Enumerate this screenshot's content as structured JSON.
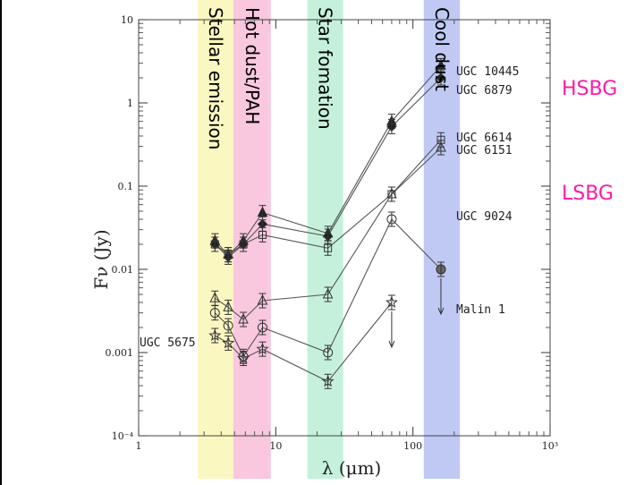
{
  "chart_data": {
    "type": "scatter",
    "xscale": "log",
    "yscale": "log",
    "xlim": [
      1,
      1000
    ],
    "ylim": [
      0.0001,
      10
    ],
    "xlabel": "λ (μm)",
    "ylabel": "Fν (Jy)",
    "x_ticks": [
      {
        "value": 1,
        "label": "1"
      },
      {
        "value": 10,
        "label": "10"
      },
      {
        "value": 100,
        "label": "100"
      },
      {
        "value": 1000,
        "label": "10³"
      }
    ],
    "y_ticks": [
      {
        "value": 10,
        "label": "10"
      },
      {
        "value": 1,
        "label": "1"
      },
      {
        "value": 0.1,
        "label": "0.1"
      },
      {
        "value": 0.01,
        "label": "0.01"
      },
      {
        "value": 0.001,
        "label": "0.001"
      },
      {
        "value": 0.0001,
        "label": "10⁻⁴"
      }
    ],
    "bands": [
      {
        "label": "Stellar emission",
        "x_range": [
          2.7,
          4.9
        ],
        "color": "#fbf7c0"
      },
      {
        "label": "Hot dust/PAH",
        "x_range": [
          4.9,
          9.2
        ],
        "color": "#f9c7de"
      },
      {
        "label": "Star fomation",
        "x_range": [
          17,
          31
        ],
        "color": "#c5f1dc"
      },
      {
        "label": "Cool dust",
        "x_range": [
          120,
          220
        ],
        "color": "#bfc9f4"
      }
    ],
    "class_labels": [
      {
        "text": "HSBG",
        "color": "#ff1aa5"
      },
      {
        "text": "LSBG",
        "color": "#ff1aa5"
      }
    ],
    "series": [
      {
        "name": "UGC 10445",
        "marker": "filled-triangle",
        "x": [
          3.6,
          4.5,
          5.8,
          8.0,
          24,
          70,
          160
        ],
        "y": [
          0.022,
          0.015,
          0.022,
          0.048,
          0.027,
          0.6,
          2.8
        ]
      },
      {
        "name": "UGC 6879",
        "marker": "filled-diamond",
        "x": [
          3.6,
          4.5,
          5.8,
          8.0,
          24,
          70,
          160
        ],
        "y": [
          0.02,
          0.014,
          0.02,
          0.035,
          0.025,
          0.52,
          2.0
        ]
      },
      {
        "name": "UGC 6614",
        "marker": "square",
        "x": [
          3.6,
          4.5,
          5.8,
          8.0,
          24,
          70,
          160
        ],
        "y": [
          0.02,
          0.015,
          0.02,
          0.026,
          0.018,
          0.08,
          0.36
        ]
      },
      {
        "name": "UGC 6151",
        "marker": "triangle",
        "x": [
          3.6,
          4.5,
          5.8,
          8.0,
          24,
          70,
          160
        ],
        "y": [
          0.0045,
          0.0035,
          0.0025,
          0.0042,
          0.005,
          0.08,
          0.29
        ]
      },
      {
        "name": "UGC 9024",
        "marker": "circle",
        "x": [
          3.6,
          4.5,
          5.8,
          8.0,
          24,
          70,
          160
        ],
        "y": [
          0.003,
          0.0021,
          0.0009,
          0.002,
          0.001,
          0.04,
          0.01
        ]
      },
      {
        "name": "UGC 5675",
        "marker": "star",
        "x": [
          3.6,
          4.5,
          5.8,
          8.0,
          24,
          70
        ],
        "y": [
          0.0016,
          0.0013,
          0.00085,
          0.0011,
          0.00045,
          0.004
        ]
      },
      {
        "name": "Malin 1",
        "marker": "filled-circle",
        "x": [
          160
        ],
        "y": [
          0.01
        ]
      }
    ],
    "upper_limits": [
      {
        "series": "UGC 5675",
        "x": 70,
        "y": 0.004
      },
      {
        "series": "Malin 1",
        "x": 160,
        "y": 0.01
      }
    ]
  }
}
